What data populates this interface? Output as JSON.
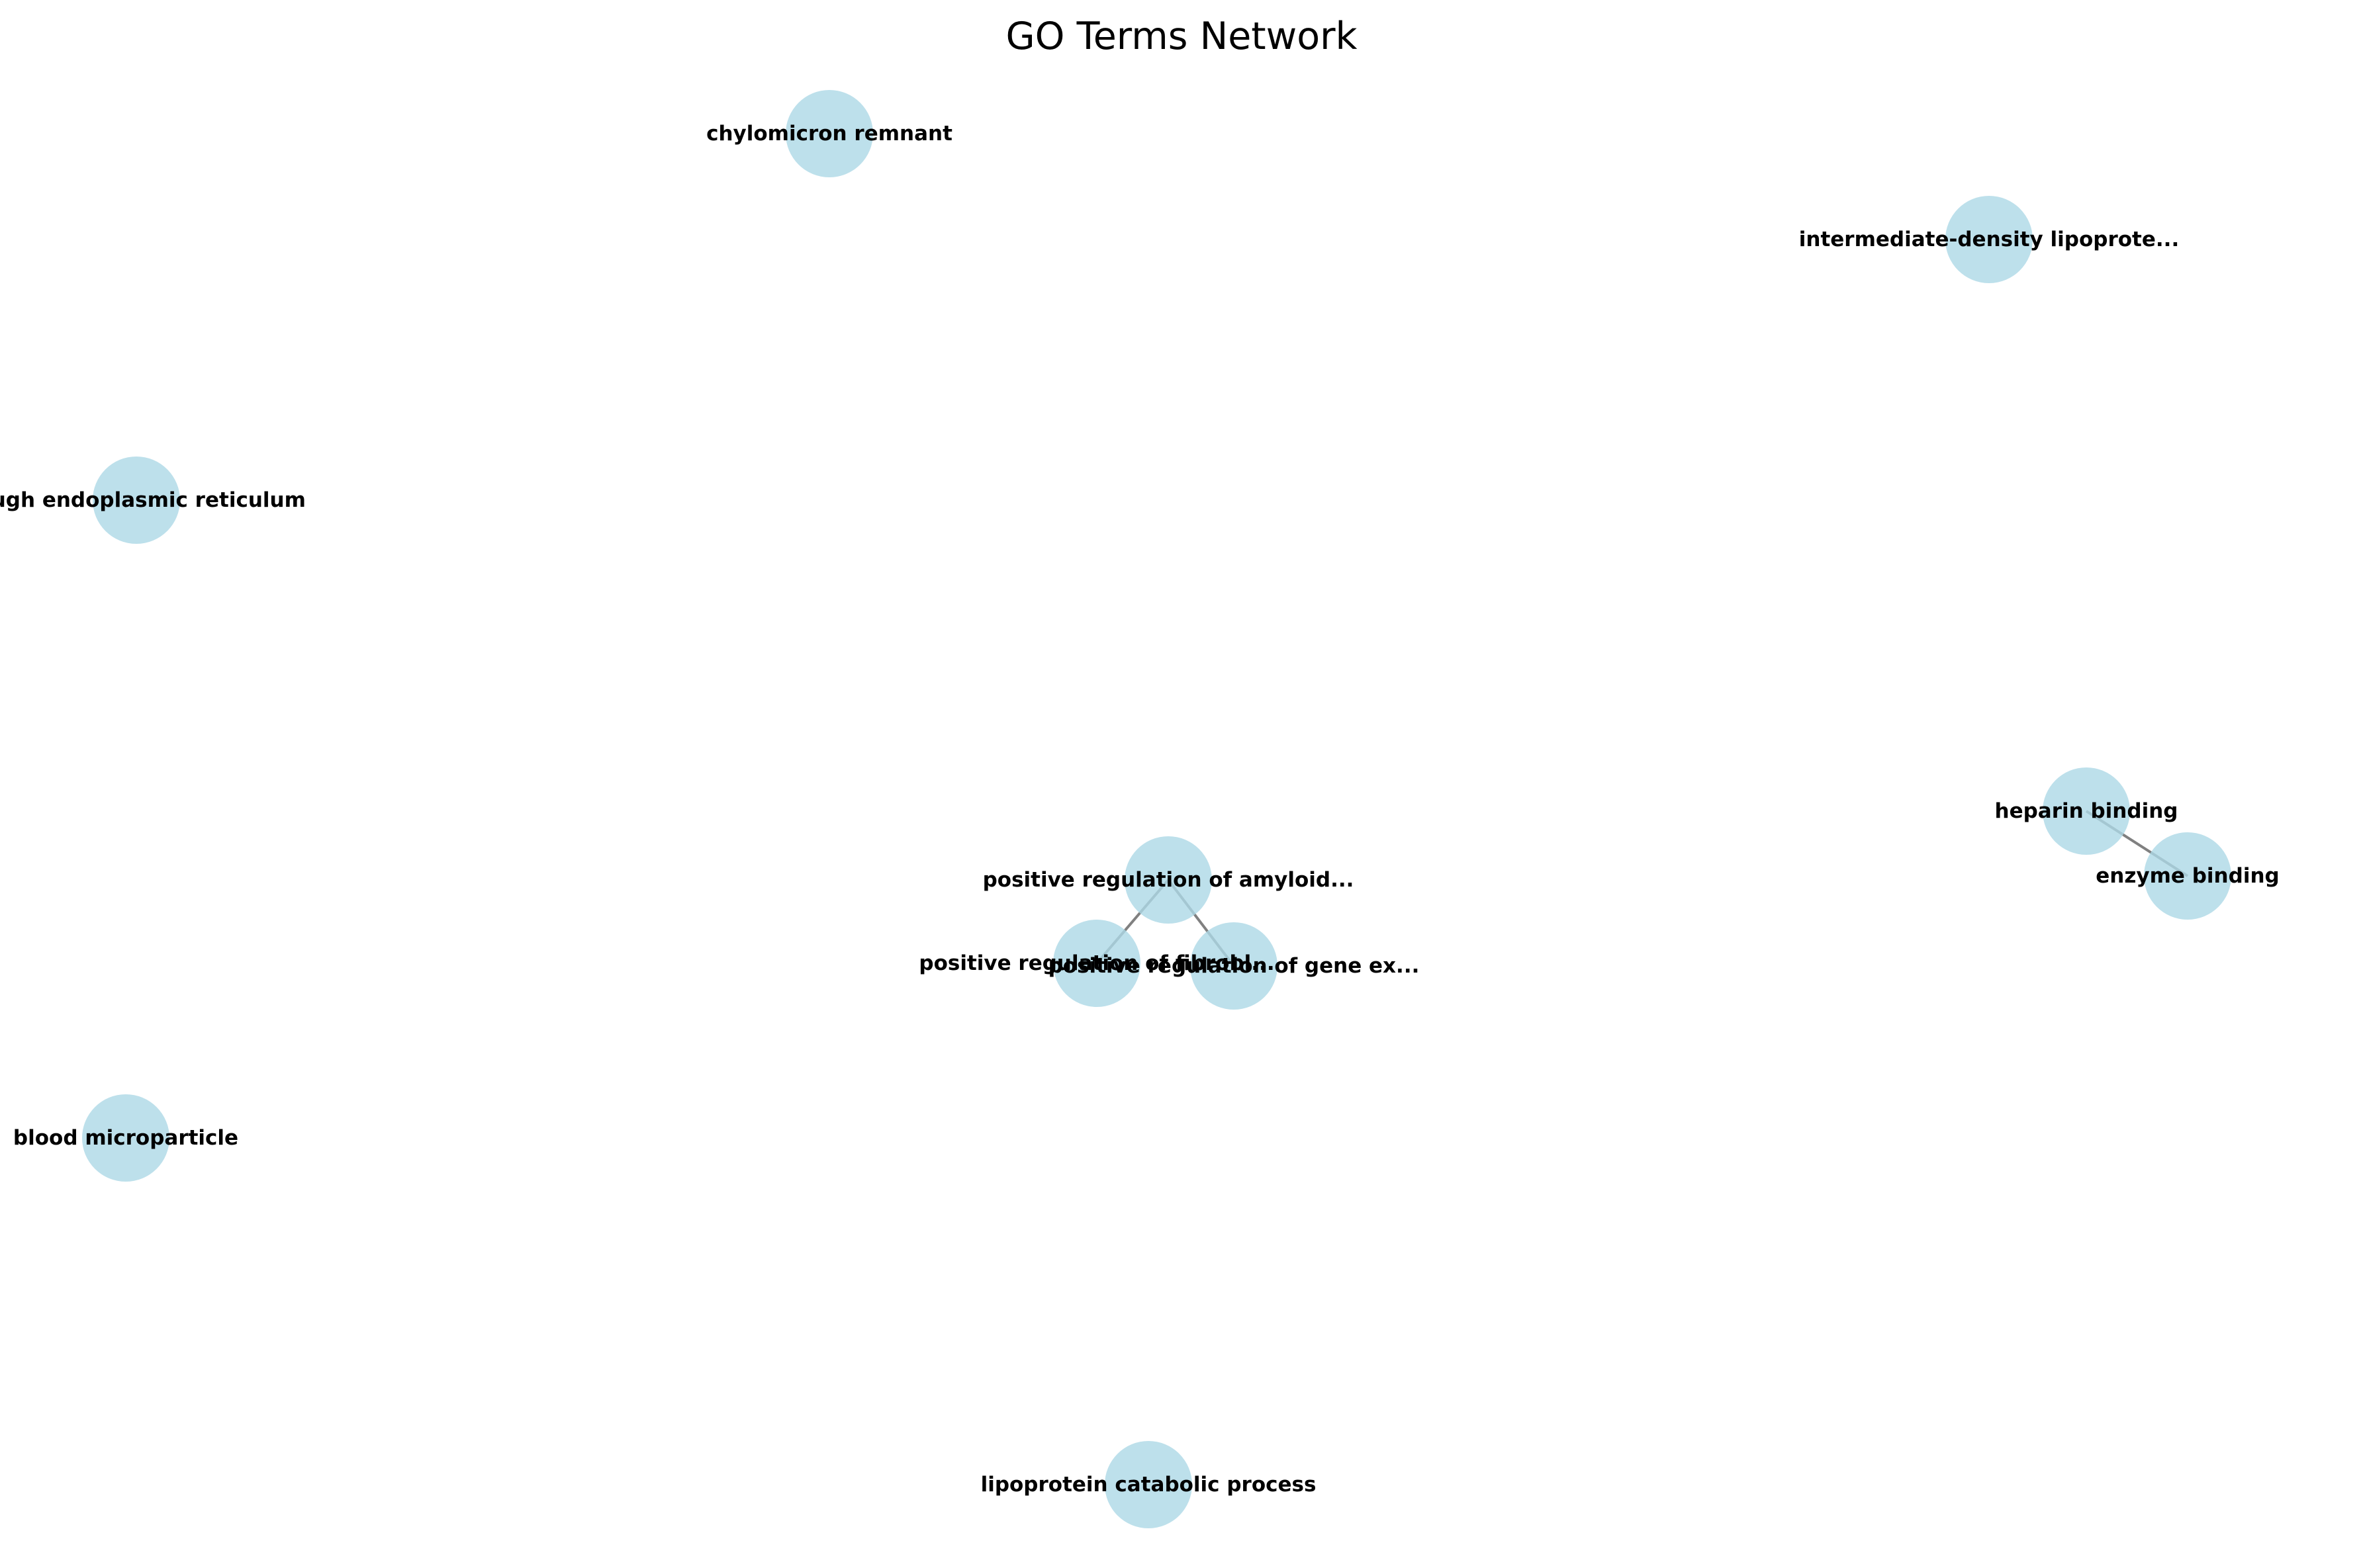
{
  "title": "GO Terms Network",
  "colors": {
    "node_fill": "#add8e6",
    "edge": "#808080",
    "label": "#000000"
  },
  "nodes": [
    {
      "id": "chylomicron",
      "label": "chylomicron remnant"
    },
    {
      "id": "idl",
      "label": "intermediate-density lipoprote..."
    },
    {
      "id": "rer",
      "label": "rough endoplasmic reticulum"
    },
    {
      "id": "heparin",
      "label": "heparin binding"
    },
    {
      "id": "enzyme",
      "label": "enzyme binding"
    },
    {
      "id": "amyloid",
      "label": "positive regulation of amyloid..."
    },
    {
      "id": "fibrobl",
      "label": "positive regulation of fibrobl..."
    },
    {
      "id": "geneex",
      "label": "positive regulation of gene ex..."
    },
    {
      "id": "blood",
      "label": "blood microparticle"
    },
    {
      "id": "lipocat",
      "label": "lipoprotein catabolic process"
    }
  ],
  "edges": [
    {
      "source": "amyloid",
      "target": "fibrobl"
    },
    {
      "source": "amyloid",
      "target": "geneex"
    },
    {
      "source": "heparin",
      "target": "enzyme"
    }
  ]
}
